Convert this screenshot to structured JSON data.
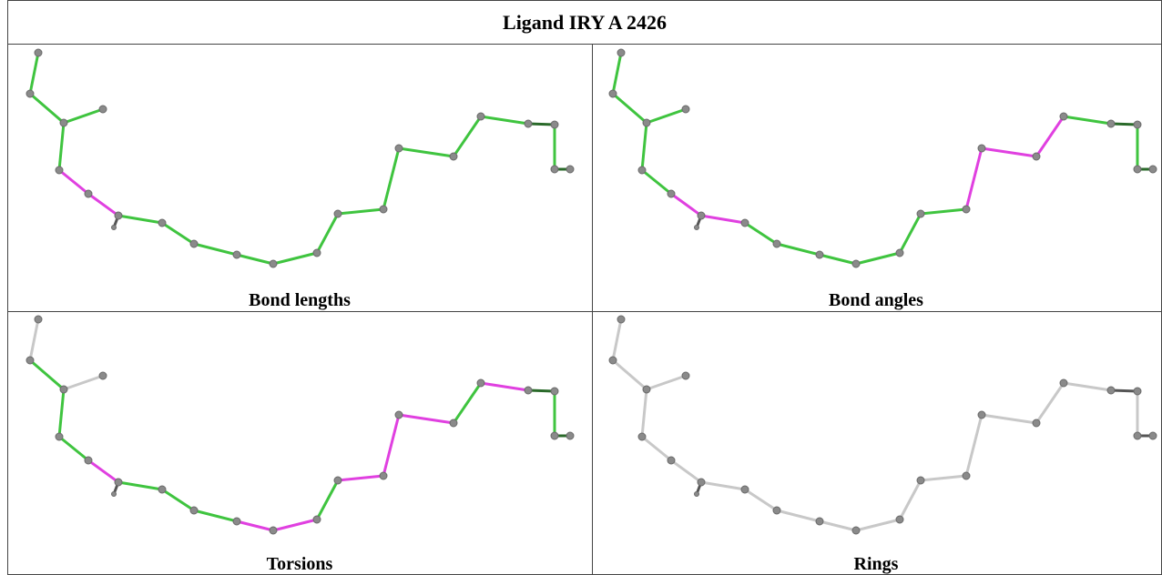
{
  "header": {
    "title": "Ligand IRY A 2426"
  },
  "panels": [
    {
      "label": "Bond lengths"
    },
    {
      "label": "Bond angles"
    },
    {
      "label": "Torsions"
    },
    {
      "label": "Rings"
    }
  ]
}
